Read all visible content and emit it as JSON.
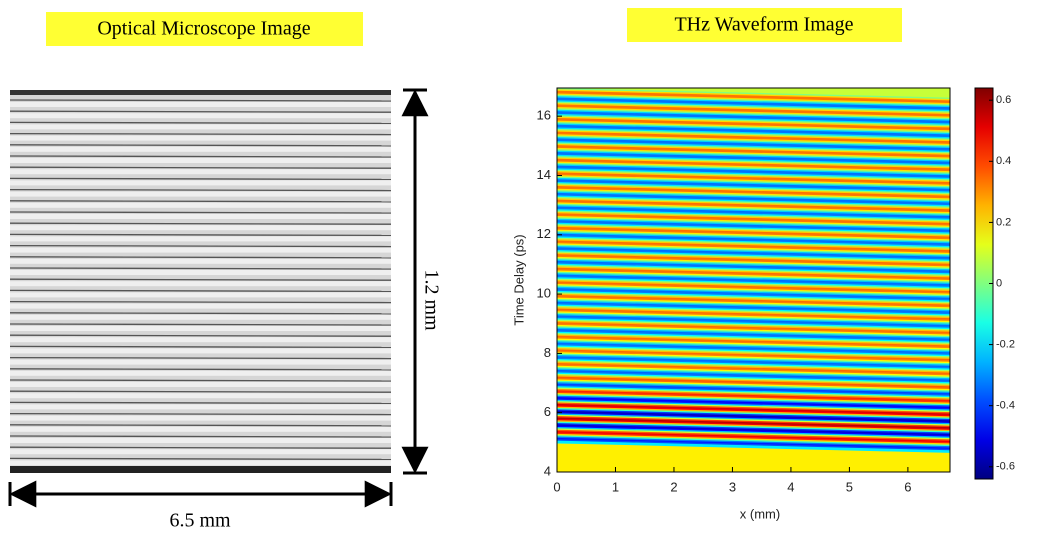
{
  "left_panel": {
    "title": "Optical Microscope Image",
    "width_label": "6.5 mm",
    "height_label": "1.2 mm"
  },
  "chart_data": {
    "type": "heatmap",
    "title": "THz Waveform Image",
    "x_label": "x (mm)",
    "y_label": "Time Delay (ps)",
    "xlim": [
      0,
      6.72
    ],
    "xticks": [
      0,
      1,
      2,
      3,
      4,
      5,
      6
    ],
    "ylim": [
      4,
      16.95
    ],
    "yticks": [
      4,
      6,
      8,
      10,
      12,
      14,
      16
    ],
    "clim": [
      -0.64,
      0.64
    ],
    "cticks": [
      -0.6,
      -0.4,
      -0.2,
      0,
      0.2,
      0.4,
      0.6
    ],
    "colormap": "jet"
  }
}
